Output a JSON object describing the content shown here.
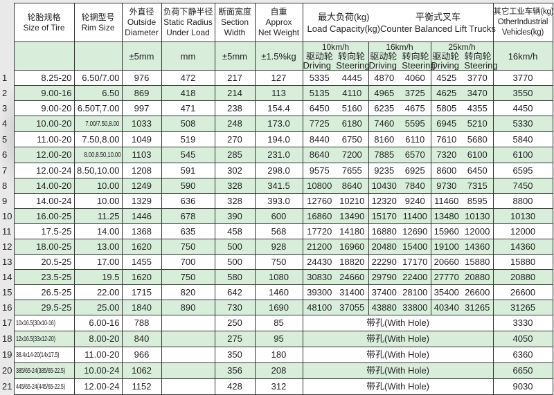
{
  "headers": {
    "tire_cn": "轮胎规格",
    "tire_en": "Size of Tire",
    "rim_cn": "轮辋型号",
    "rim_en": "Rim Size",
    "od_cn": "外直径",
    "od_en1": "Outside",
    "od_en2": "Diameter",
    "sr_cn": "负荷下静半径",
    "sr_en1": "Static Radius",
    "sr_en2": "Under Load",
    "sw_cn": "断面宽度",
    "sw_en1": "Section",
    "sw_en2": "Width",
    "wt_cn": "自重",
    "wt_en1": "Approx",
    "wt_en2": "Net Weight",
    "lc_cn": "最大负荷(kg)",
    "lc_en": "Load Capacity(kg)",
    "cb_cn": "平衡式叉车",
    "cb_en": "Counter Balanced Lift Trucks",
    "oth_cn": "其它工业车辆(kg)",
    "oth_en1": "OtherIndustrial",
    "oth_en2": "Vehicles(kg)"
  },
  "units": {
    "od": "±5mm",
    "sr": "mm",
    "sw": "±5mm",
    "wt": "±1.5%kg",
    "speed10": "10km/h",
    "speed16": "16km/h",
    "speed25": "25km/h",
    "driving_cn": "驱动轮",
    "steering_cn": "转向轮",
    "driving_en": "Driving",
    "steering_en": "Steering",
    "other": "16km/h"
  },
  "with_hole": "带孔(With Hole)",
  "rows": [
    {
      "n": "1",
      "tire": "8.25-20",
      "rim": "6.50/7.00",
      "od": "976",
      "sr": "472",
      "sw": "217",
      "wt": "127",
      "load": [
        "5335",
        "4445",
        "4870",
        "4060",
        "4525",
        "3770"
      ],
      "other": "3770"
    },
    {
      "n": "2",
      "tire": "9.00-16",
      "rim": "6.50",
      "od": "869",
      "sr": "418",
      "sw": "214",
      "wt": "113",
      "load": [
        "5135",
        "4110",
        "4965",
        "3725",
        "4625",
        "3470"
      ],
      "other": "3550"
    },
    {
      "n": "3",
      "tire": "9.00-20",
      "rim": "6.50T,7.00",
      "od": "997",
      "sr": "471",
      "sw": "238",
      "wt": "154.4",
      "load": [
        "6450",
        "5160",
        "6235",
        "4675",
        "5805",
        "4355"
      ],
      "other": "4450"
    },
    {
      "n": "4",
      "tire": "10.00-20",
      "rim": "7.00/7.50,8.00",
      "od": "1033",
      "sr": "508",
      "sw": "248",
      "wt": "173.0",
      "load": [
        "7725",
        "6180",
        "7460",
        "5595",
        "6945",
        "5210"
      ],
      "other": "5330"
    },
    {
      "n": "5",
      "tire": "11.00-20",
      "rim": "7.50,8.00",
      "od": "1049",
      "sr": "519",
      "sw": "270",
      "wt": "194.0",
      "load": [
        "8440",
        "6750",
        "8160",
        "6110",
        "7610",
        "5680"
      ],
      "other": "5840"
    },
    {
      "n": "6",
      "tire": "12.00-20",
      "rim": "8.00,8.50,10.00",
      "od": "1103",
      "sr": "545",
      "sw": "285",
      "wt": "231.0",
      "load": [
        "8640",
        "7200",
        "7885",
        "6570",
        "7320",
        "6100"
      ],
      "other": "6100"
    },
    {
      "n": "7",
      "tire": "12.00-24",
      "rim": "8.50,10.00",
      "od": "1208",
      "sr": "591",
      "sw": "302",
      "wt": "298.0",
      "load": [
        "9575",
        "7655",
        "9235",
        "6925",
        "8600",
        "6450"
      ],
      "other": "6595"
    },
    {
      "n": "8",
      "tire": "14.00-20",
      "rim": "10.00",
      "od": "1249",
      "sr": "590",
      "sw": "328",
      "wt": "341.5",
      "load": [
        "10800",
        "8640",
        "10430",
        "7840",
        "9730",
        "7315"
      ],
      "other": "7450"
    },
    {
      "n": "9",
      "tire": "14.00-24",
      "rim": "10.00",
      "od": "1329",
      "sr": "636",
      "sw": "328",
      "wt": "393.0",
      "load": [
        "12760",
        "10210",
        "12320",
        "9240",
        "11460",
        "8595"
      ],
      "other": "8800"
    },
    {
      "n": "10",
      "tire": "16.00-25",
      "rim": "11.25",
      "od": "1446",
      "sr": "678",
      "sw": "390",
      "wt": "600",
      "load": [
        "16860",
        "13490",
        "15170",
        "11400",
        "13480",
        "10130"
      ],
      "other": "10130"
    },
    {
      "n": "11",
      "tire": "17.5-25",
      "rim": "14.00",
      "od": "1368",
      "sr": "635",
      "sw": "458",
      "wt": "568",
      "load": [
        "17720",
        "14180",
        "16880",
        "12690",
        "15960",
        "12000"
      ],
      "other": "12000"
    },
    {
      "n": "12",
      "tire": "18.00-25",
      "rim": "13.00",
      "od": "1620",
      "sr": "750",
      "sw": "500",
      "wt": "928",
      "load": [
        "21200",
        "16960",
        "20480",
        "15400",
        "19100",
        "14360"
      ],
      "other": "14360"
    },
    {
      "n": "13",
      "tire": "20.5-25",
      "rim": "17.00",
      "od": "1455",
      "sr": "700",
      "sw": "500",
      "wt": "750",
      "load": [
        "24430",
        "18820",
        "22290",
        "17170",
        "20660",
        "15880"
      ],
      "other": "15880"
    },
    {
      "n": "14",
      "tire": "23.5-25",
      "rim": "19.5",
      "od": "1620",
      "sr": "750",
      "sw": "580",
      "wt": "1080",
      "load": [
        "30830",
        "24660",
        "29790",
        "22400",
        "27770",
        "20880"
      ],
      "other": "20880"
    },
    {
      "n": "15",
      "tire": "26.5-25",
      "rim": "22.00",
      "od": "1715",
      "sr": "820",
      "sw": "642",
      "wt": "1460",
      "load": [
        "39300",
        "31400",
        "37400",
        "28100",
        "35400",
        "26600"
      ],
      "other": "26600"
    },
    {
      "n": "16",
      "tire": "29.5-25",
      "rim": "25.00",
      "od": "1840",
      "sr": "890",
      "sw": "730",
      "wt": "1690",
      "load": [
        "48100",
        "37055",
        "43880",
        "33800",
        "40340",
        "31265"
      ],
      "other": "31265"
    },
    {
      "n": "17",
      "tire": "10x16.5(30x10-16)",
      "rim": "6.00-16",
      "od": "788",
      "sr": "",
      "sw": "250",
      "wt": "85",
      "load": null,
      "other": "3330"
    },
    {
      "n": "18",
      "tire": "12x16.5(33x12-20)",
      "rim": "8.00-20",
      "od": "840",
      "sr": "",
      "sw": "275",
      "wt": "95",
      "load": null,
      "other": "4050"
    },
    {
      "n": "19",
      "tire": "38.4x14-20(14x17.5)",
      "rim": "11.00-20",
      "od": "966",
      "sr": "",
      "sw": "350",
      "wt": "180",
      "load": null,
      "other": "6360"
    },
    {
      "n": "20",
      "tire": "385/65-24(385/65-22.5)",
      "rim": "10.00-24",
      "od": "1062",
      "sr": "",
      "sw": "356",
      "wt": "208",
      "load": null,
      "other": "6650"
    },
    {
      "n": "21",
      "tire": "445/65-24(445/65-22.5)",
      "rim": "12.00-24",
      "od": "1152",
      "sr": "",
      "sw": "428",
      "wt": "312",
      "load": null,
      "other": "9030"
    }
  ],
  "colors": {
    "row_green": "#d8eedb",
    "border": "#333333"
  }
}
